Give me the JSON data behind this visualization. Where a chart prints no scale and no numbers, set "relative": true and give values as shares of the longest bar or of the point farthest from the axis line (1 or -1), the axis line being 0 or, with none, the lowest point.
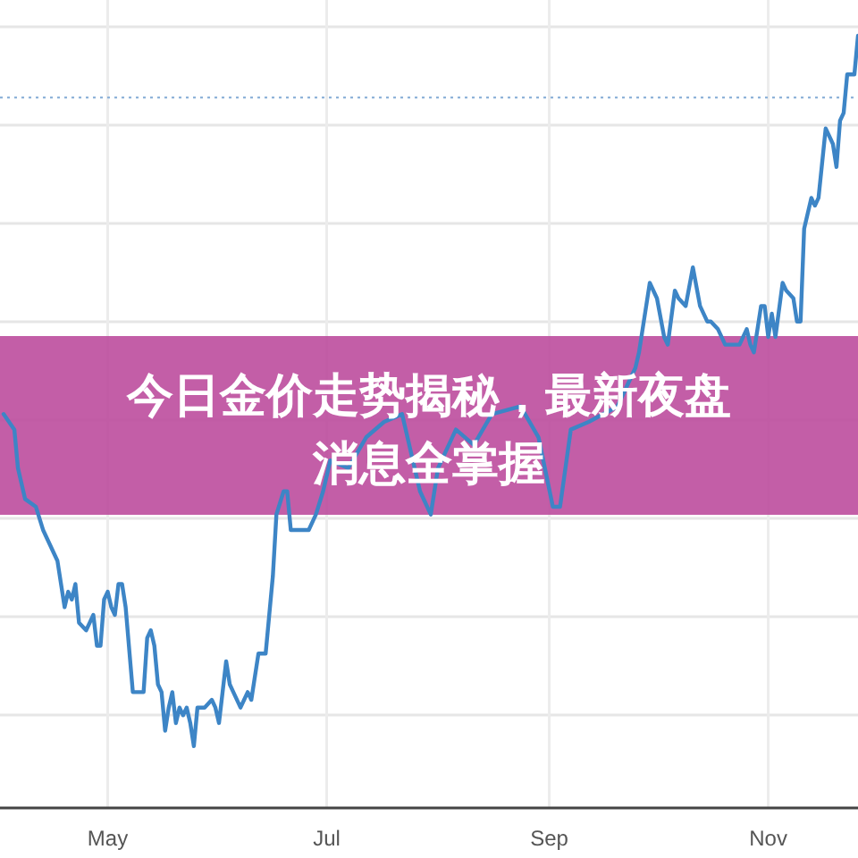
{
  "chart_data": {
    "type": "line",
    "title": "今日金价走势揭秘，最新夜盘消息全掌握",
    "relative": true,
    "grid": true,
    "marker": "none",
    "line_style": "solid",
    "xlim": [
      "--04-01",
      "--11-26"
    ],
    "xticks": [
      {
        "value": "--05-01",
        "label": "May"
      },
      {
        "value": "--07-01",
        "label": "Jul"
      },
      {
        "value": "--09-01",
        "label": "Sep"
      },
      {
        "value": "--11-01",
        "label": "Nov"
      }
    ],
    "ref_lines": [
      {
        "axis": "y",
        "value": 0.92,
        "color": "#8fb3d9",
        "line_style": "dotted"
      }
    ],
    "series": [
      {
        "color": "#3d85c6",
        "x": [
          "--04-02",
          "--04-05",
          "--04-06",
          "--04-08",
          "--04-11",
          "--04-13",
          "--04-15",
          "--04-17",
          "--04-19",
          "--04-20",
          "--04-21",
          "--04-22",
          "--04-23",
          "--04-25",
          "--04-26",
          "--04-27",
          "--04-28",
          "--04-29",
          "--04-30",
          "--05-01",
          "--05-02",
          "--05-03",
          "--05-04",
          "--05-05",
          "--05-06",
          "--05-08",
          "--05-09",
          "--05-10",
          "--05-11",
          "--05-12",
          "--05-13",
          "--05-14",
          "--05-15",
          "--05-16",
          "--05-17",
          "--05-18",
          "--05-19",
          "--05-20",
          "--05-21",
          "--05-22",
          "--05-23",
          "--05-24",
          "--05-25",
          "--05-26",
          "--05-28",
          "--05-30",
          "--05-31",
          "--06-01",
          "--06-02",
          "--06-03",
          "--06-04",
          "--06-05",
          "--06-07",
          "--06-08",
          "--06-09",
          "--06-10",
          "--06-12",
          "--06-13",
          "--06-14",
          "--06-15",
          "--06-16",
          "--06-17",
          "--06-19",
          "--06-20",
          "--06-21",
          "--06-23",
          "--06-25",
          "--06-26",
          "--06-28",
          "--06-30",
          "--07-02",
          "--07-07",
          "--07-12",
          "--07-17",
          "--07-22",
          "--07-27",
          "--07-30",
          "--08-01",
          "--08-06",
          "--08-11",
          "--08-16",
          "--08-24",
          "--08-29",
          "--09-02",
          "--09-04",
          "--09-07",
          "--09-12",
          "--09-20",
          "--09-25",
          "--09-26",
          "--09-29",
          "--10-01",
          "--10-03",
          "--10-04",
          "--10-06",
          "--10-07",
          "--10-09",
          "--10-11",
          "--10-13",
          "--10-15",
          "--10-16",
          "--10-18",
          "--10-20",
          "--10-21",
          "--10-22",
          "--10-24",
          "--10-26",
          "--10-27",
          "--10-28",
          "--10-30",
          "--10-31",
          "--11-01",
          "--11-02",
          "--11-03",
          "--11-05",
          "--11-06",
          "--11-08",
          "--11-09",
          "--11-10",
          "--11-11",
          "--11-13",
          "--11-14",
          "--11-15",
          "--11-17",
          "--11-19",
          "--11-20",
          "--11-21",
          "--11-22",
          "--11-23",
          "--11-25",
          "--11-26"
        ],
        "values": [
          0.51,
          0.49,
          0.44,
          0.4,
          0.39,
          0.36,
          0.34,
          0.32,
          0.26,
          0.28,
          0.27,
          0.29,
          0.24,
          0.23,
          0.24,
          0.25,
          0.21,
          0.21,
          0.27,
          0.28,
          0.26,
          0.25,
          0.29,
          0.29,
          0.26,
          0.15,
          0.15,
          0.15,
          0.15,
          0.22,
          0.23,
          0.21,
          0.16,
          0.15,
          0.1,
          0.13,
          0.15,
          0.11,
          0.13,
          0.12,
          0.13,
          0.11,
          0.08,
          0.13,
          0.13,
          0.14,
          0.13,
          0.11,
          0.15,
          0.19,
          0.16,
          0.15,
          0.13,
          0.14,
          0.15,
          0.14,
          0.2,
          0.2,
          0.2,
          0.25,
          0.3,
          0.38,
          0.41,
          0.41,
          0.36,
          0.36,
          0.36,
          0.36,
          0.38,
          0.41,
          0.45,
          0.44,
          0.48,
          0.5,
          0.51,
          0.41,
          0.38,
          0.44,
          0.49,
          0.47,
          0.51,
          0.52,
          0.48,
          0.39,
          0.39,
          0.49,
          0.5,
          0.52,
          0.57,
          0.59,
          0.68,
          0.66,
          0.61,
          0.6,
          0.67,
          0.66,
          0.65,
          0.7,
          0.65,
          0.63,
          0.63,
          0.62,
          0.6,
          0.6,
          0.6,
          0.6,
          0.62,
          0.6,
          0.59,
          0.65,
          0.65,
          0.61,
          0.64,
          0.61,
          0.68,
          0.67,
          0.66,
          0.63,
          0.63,
          0.75,
          0.79,
          0.78,
          0.79,
          0.88,
          0.86,
          0.83,
          0.89,
          0.9,
          0.95,
          0.95,
          1
        ]
      }
    ]
  }
}
